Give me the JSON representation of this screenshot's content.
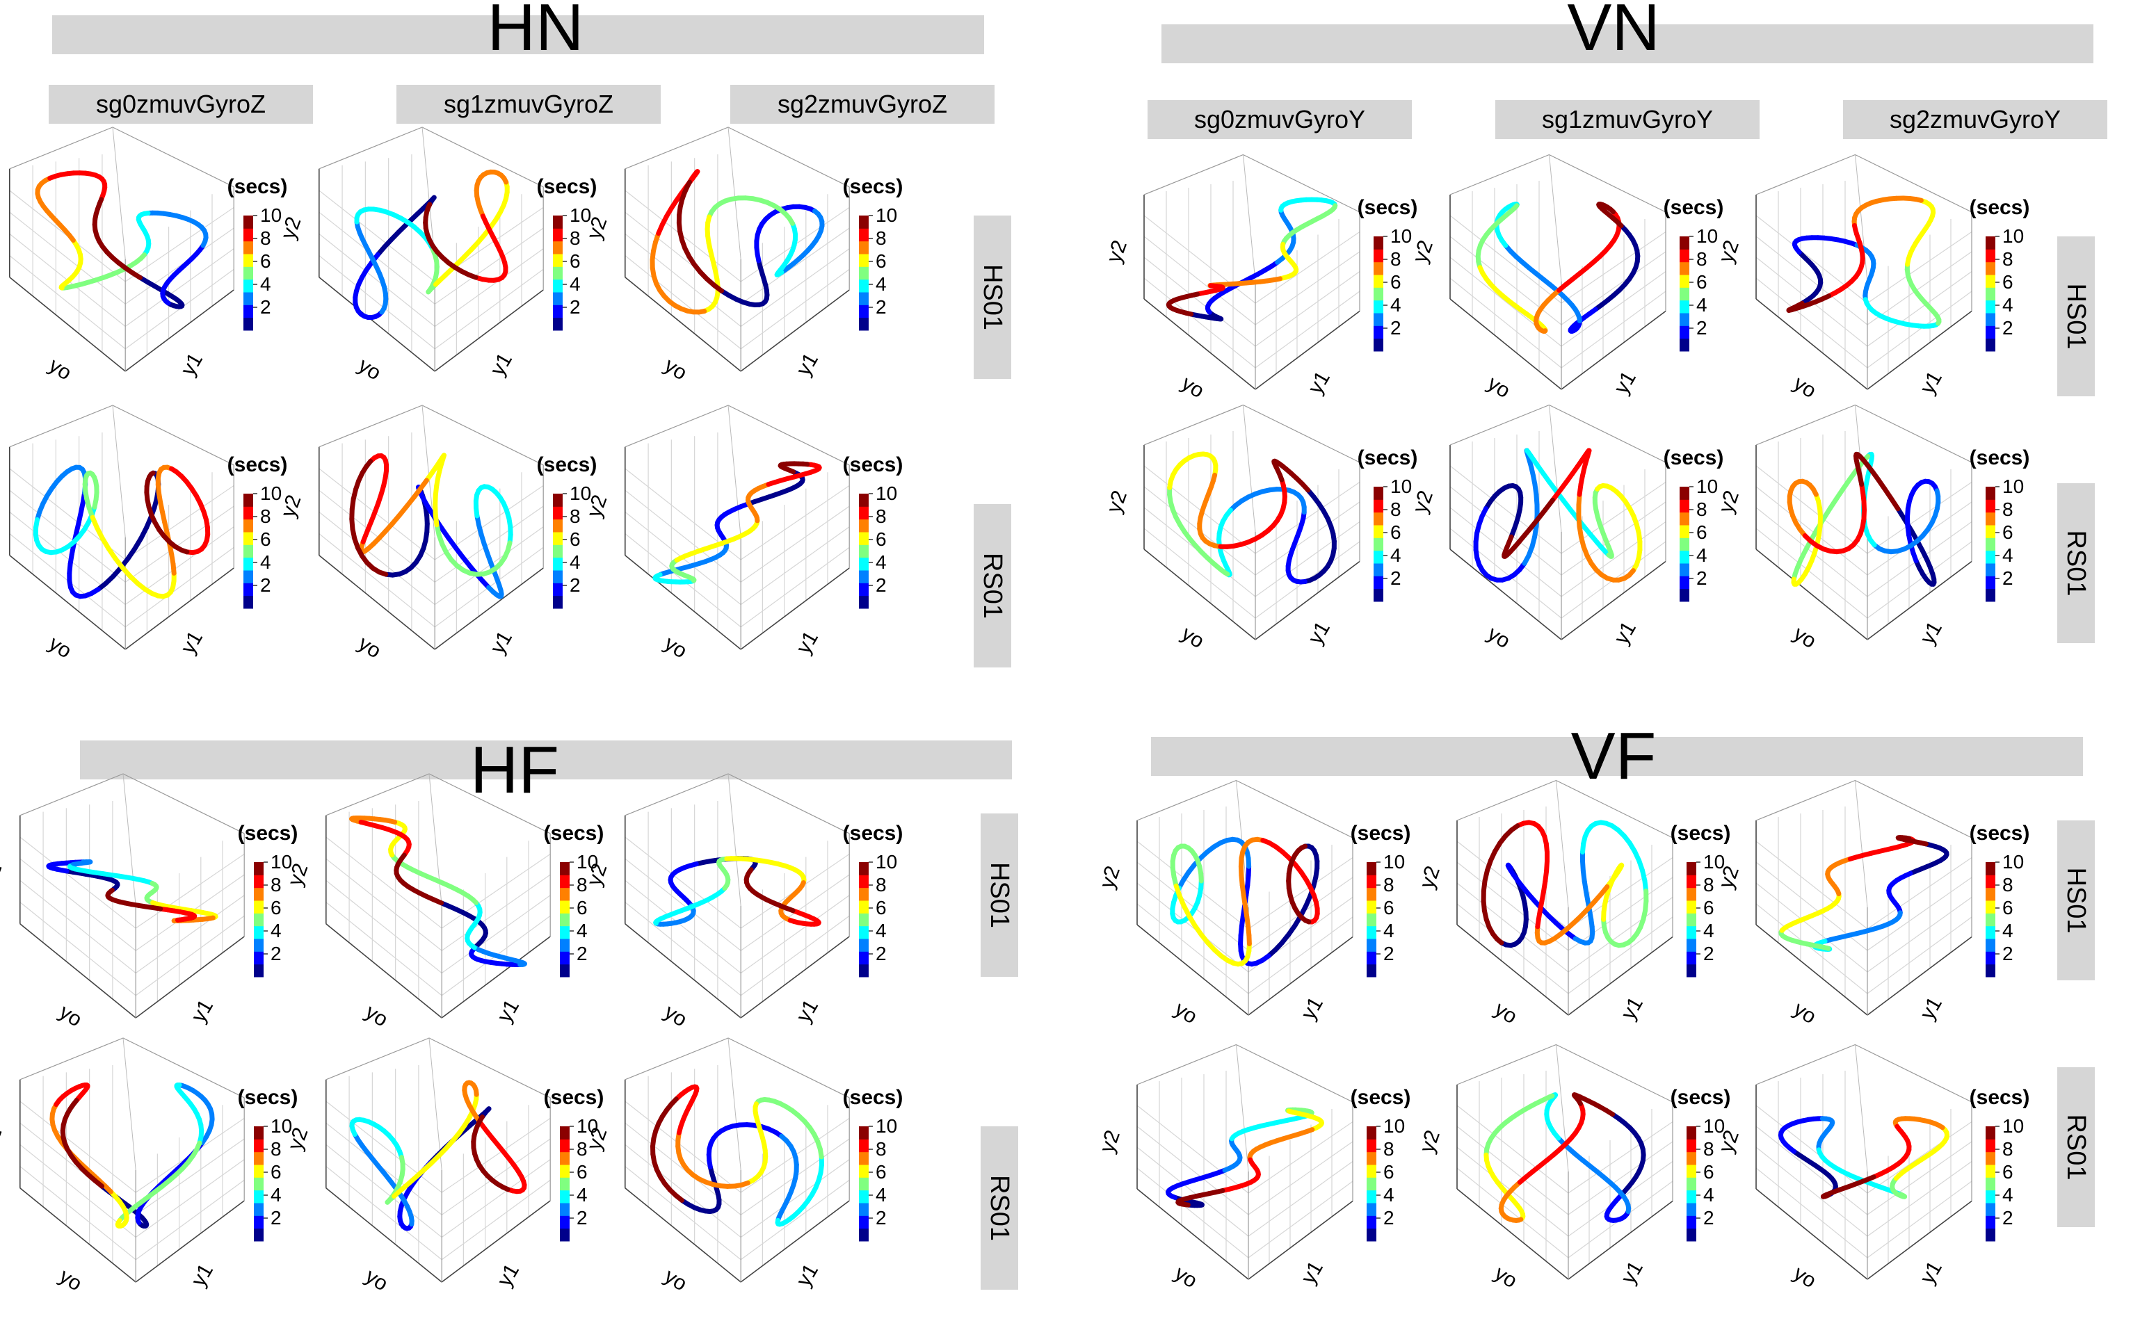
{
  "chart_data": {
    "type": "line",
    "panels": [
      {
        "title": "HN",
        "columns": [
          "sg0zmuvGyroZ",
          "sg1zmuvGyroZ",
          "sg2zmuvGyroZ"
        ],
        "rows": [
          "HS01",
          "RS01"
        ]
      },
      {
        "title": "VN",
        "columns": [
          "sg0zmuvGyroY",
          "sg1zmuvGyroY",
          "sg2zmuvGyroY"
        ],
        "rows": [
          "HS01",
          "RS01"
        ]
      },
      {
        "title": "HF",
        "columns": [],
        "rows": [
          "HS01",
          "RS01"
        ]
      },
      {
        "title": "VF",
        "columns": [],
        "rows": [
          "HS01",
          "RS01"
        ]
      }
    ],
    "axis_labels": {
      "x": "yo",
      "y": "y1",
      "z": "y2"
    },
    "colorbar": {
      "label": "(secs)",
      "ticks": [
        "2",
        "4",
        "6",
        "8",
        "10"
      ],
      "range": [
        0,
        10
      ],
      "colors": [
        "#00008b",
        "#0000ff",
        "#0080ff",
        "#00ffff",
        "#80ff80",
        "#ffff00",
        "#ff8000",
        "#ff0000",
        "#8b0000"
      ]
    },
    "series_color": "time (secs)"
  }
}
